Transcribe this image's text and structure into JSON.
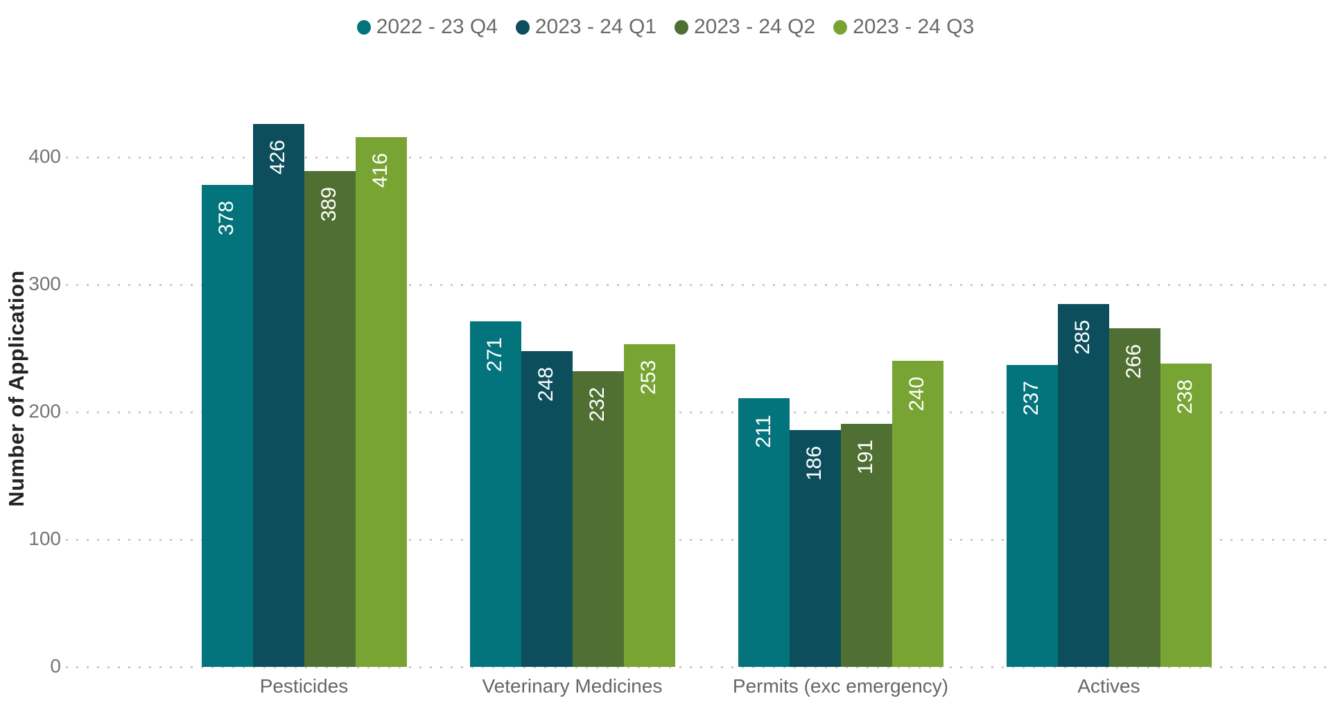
{
  "chart_data": {
    "type": "bar",
    "title": "",
    "xlabel": "",
    "ylabel": "Number of Application",
    "ylim": [
      0,
      450
    ],
    "yticks": [
      0,
      100,
      200,
      300,
      400
    ],
    "grid": "horizontal-dotted",
    "gridline_color": "#c9c9c9",
    "legend_position": "top-center",
    "value_labels": "inside-top-rotated-90",
    "categories": [
      "Pesticides",
      "Veterinary Medicines",
      "Permits (exc emergency)",
      "Actives"
    ],
    "series": [
      {
        "name": "2022 - 23 Q4",
        "color": "#04747C",
        "values": [
          378,
          271,
          211,
          237
        ]
      },
      {
        "name": "2023 - 24 Q1",
        "color": "#0C4E5C",
        "values": [
          426,
          248,
          186,
          285
        ]
      },
      {
        "name": "2023 - 24 Q2",
        "color": "#4F7032",
        "values": [
          389,
          232,
          191,
          266
        ]
      },
      {
        "name": "2023 - 24 Q3",
        "color": "#78A433",
        "values": [
          416,
          253,
          240,
          238
        ]
      }
    ],
    "value_label_color": "#ffffff",
    "axis_title_color": "#252423",
    "tick_label_color": "#757575",
    "category_label_color": "#666666",
    "legend_text_color": "#6a6a6a"
  }
}
